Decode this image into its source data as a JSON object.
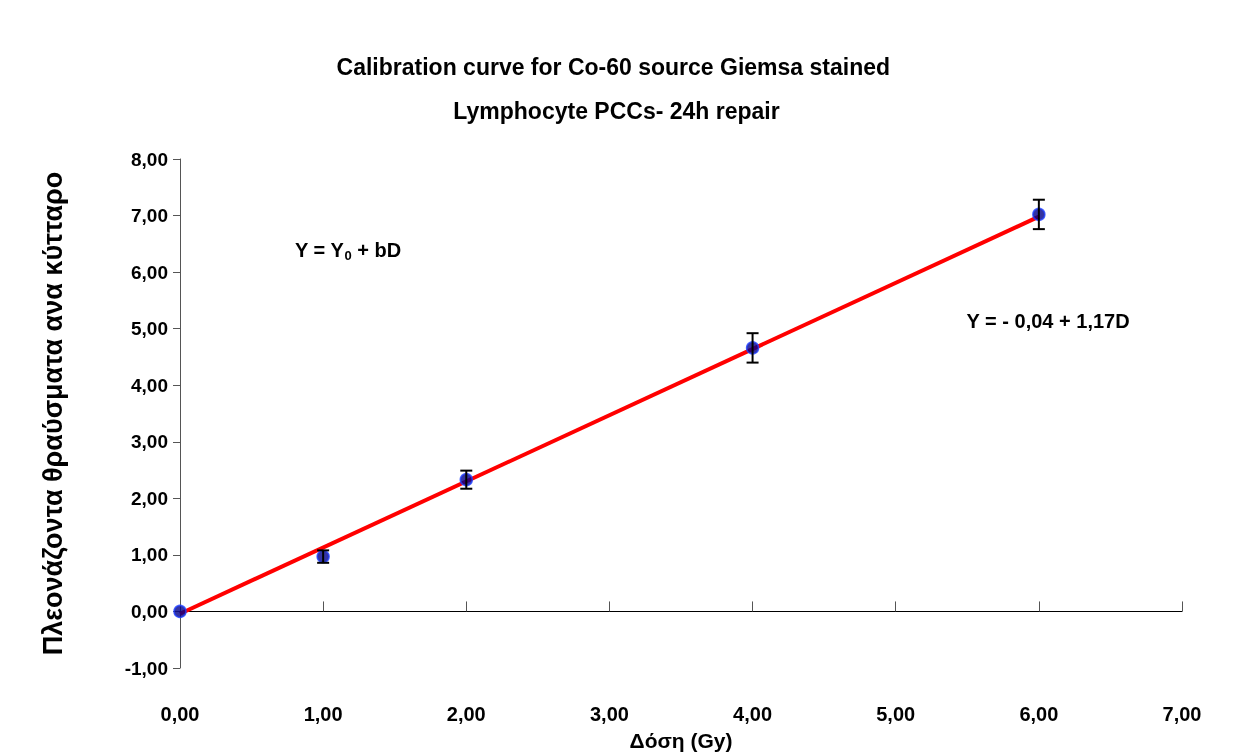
{
  "chart_data": {
    "type": "scatter",
    "title": "Calibration curve for Co-60 source Giemsa stained Lymphocyte PCCs- 24h repair",
    "xlabel": "Δόση (Gy)",
    "ylabel": "Πλεονάζοντα θραύσματα ανα κύτταρο",
    "annotations": [
      "Y = Y$_{0}$ + bD",
      "Y = - 0,04 + 1,17D"
    ],
    "marker": "circle",
    "xlim": [
      0,
      7
    ],
    "xticks": [
      {
        "value": 0,
        "label": "0,00"
      },
      {
        "value": 1,
        "label": "1,00"
      },
      {
        "value": 2,
        "label": "2,00"
      },
      {
        "value": 3,
        "label": "3,00"
      },
      {
        "value": 4,
        "label": "4,00"
      },
      {
        "value": 5,
        "label": "5,00"
      },
      {
        "value": 6,
        "label": "6,00"
      },
      {
        "value": 7,
        "label": "7,00"
      }
    ],
    "ylim": [
      -1,
      8
    ],
    "yticks": [
      {
        "value": -1,
        "label": "-1,00"
      },
      {
        "value": 0,
        "label": "0,00"
      },
      {
        "value": 1,
        "label": "1,00"
      },
      {
        "value": 2,
        "label": "2,00"
      },
      {
        "value": 3,
        "label": "3,00"
      },
      {
        "value": 4,
        "label": "4,00"
      },
      {
        "value": 5,
        "label": "5,00"
      },
      {
        "value": 6,
        "label": "6,00"
      },
      {
        "value": 7,
        "label": "7,00"
      },
      {
        "value": 8,
        "label": "8,00"
      }
    ],
    "series": [
      {
        "type": "line",
        "color": "#ff0000",
        "x": [
          0,
          6
        ],
        "values": [
          -0.04,
          6.98
        ],
        "marker": "none"
      },
      {
        "color": "#00008b",
        "x": [
          0,
          1,
          2,
          4,
          6
        ],
        "values": [
          0,
          0.97,
          2.33,
          4.66,
          7.02
        ],
        "errors": [
          null,
          0.11,
          0.16,
          0.26,
          0.26
        ]
      }
    ]
  }
}
